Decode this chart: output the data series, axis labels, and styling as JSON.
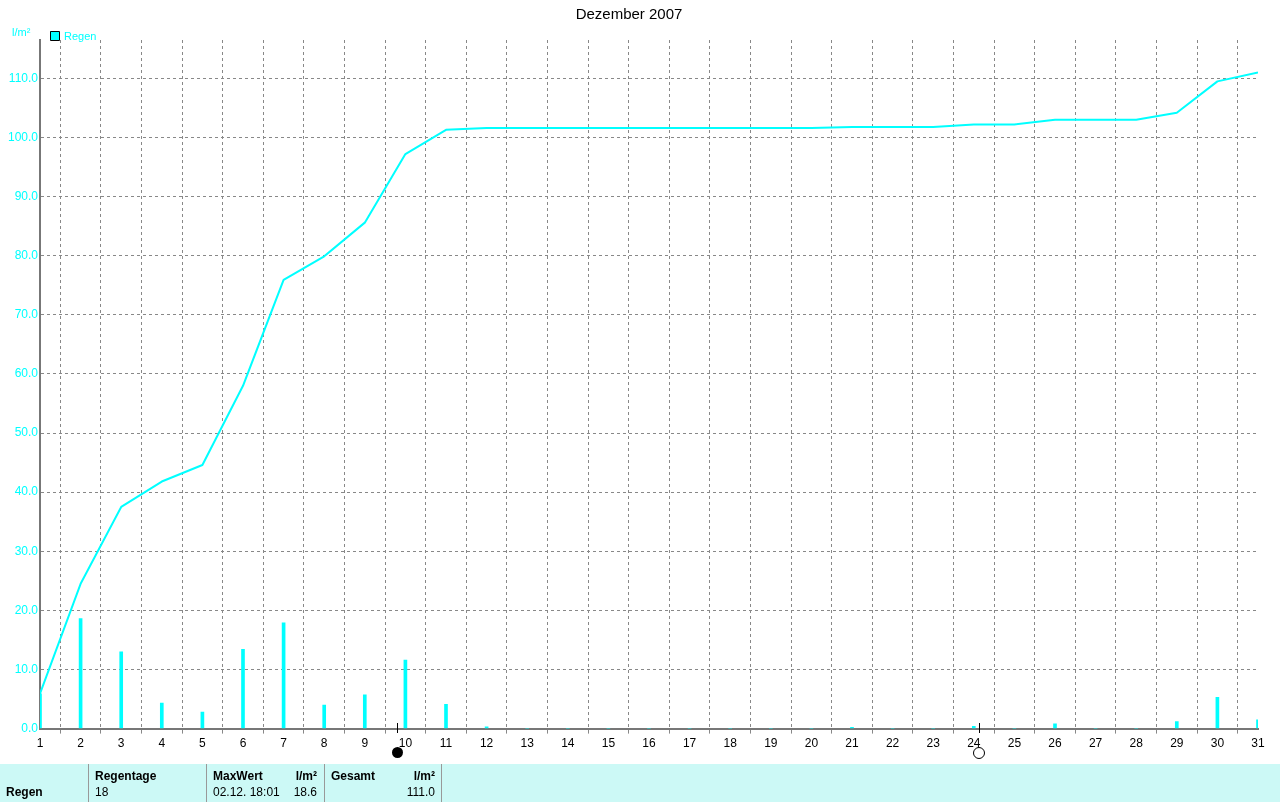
{
  "chart_data": {
    "type": "line",
    "title": "Dezember 2007",
    "ylabel": "l/m²",
    "x": [
      1,
      2,
      3,
      4,
      5,
      6,
      7,
      8,
      9,
      10,
      11,
      12,
      13,
      14,
      15,
      16,
      17,
      18,
      19,
      20,
      21,
      22,
      23,
      24,
      25,
      26,
      27,
      28,
      29,
      30,
      31
    ],
    "series": [
      {
        "name": "Regen",
        "color": "#00ffff",
        "values": [
          5.9,
          24.5,
          37.5,
          41.8,
          44.6,
          58.0,
          75.9,
          79.9,
          85.6,
          97.2,
          101.3,
          101.6,
          101.6,
          101.6,
          101.6,
          101.6,
          101.6,
          101.6,
          101.6,
          101.6,
          101.8,
          101.8,
          101.8,
          102.2,
          102.2,
          103.0,
          103.0,
          103.0,
          104.2,
          109.5,
          111.0
        ]
      },
      {
        "type": "bar",
        "color": "#00ffff",
        "values": [
          5.9,
          18.6,
          13.0,
          4.3,
          2.8,
          13.4,
          17.9,
          4.0,
          5.7,
          11.6,
          4.1,
          0.3,
          0,
          0,
          0,
          0,
          0,
          0,
          0,
          0,
          0.2,
          0,
          0,
          0.4,
          0,
          0.8,
          0,
          0,
          1.2,
          5.3,
          1.5
        ]
      }
    ],
    "xlim": [
      1,
      31
    ],
    "xticks": [
      1,
      2,
      3,
      4,
      5,
      6,
      7,
      8,
      9,
      10,
      11,
      12,
      13,
      14,
      15,
      16,
      17,
      18,
      19,
      20,
      21,
      22,
      23,
      24,
      25,
      26,
      27,
      28,
      29,
      30,
      31
    ],
    "ylim": [
      0,
      116.5
    ],
    "yticks": [
      {
        "value": 0,
        "label": "0.0"
      },
      {
        "value": 10,
        "label": "10.0"
      },
      {
        "value": 20,
        "label": "20.0"
      },
      {
        "value": 30,
        "label": "30.0"
      },
      {
        "value": 40,
        "label": "40.0"
      },
      {
        "value": 50,
        "label": "50.0"
      },
      {
        "value": 60,
        "label": "60.0"
      },
      {
        "value": 70,
        "label": "70.0"
      },
      {
        "value": 80,
        "label": "80.0"
      },
      {
        "value": 90,
        "label": "90.0"
      },
      {
        "value": 100,
        "label": "100.0"
      },
      {
        "value": 110,
        "label": "110.0"
      }
    ],
    "grid": true,
    "legend": "top left",
    "marker": "none",
    "line_style": "solid",
    "annotations": [
      "Regen",
      "Regentage",
      "18",
      "MaxWert",
      "02.12.  18:01",
      "l/m²",
      "18.6",
      "Gesamt",
      "l/m²",
      "111.0"
    ]
  }
}
